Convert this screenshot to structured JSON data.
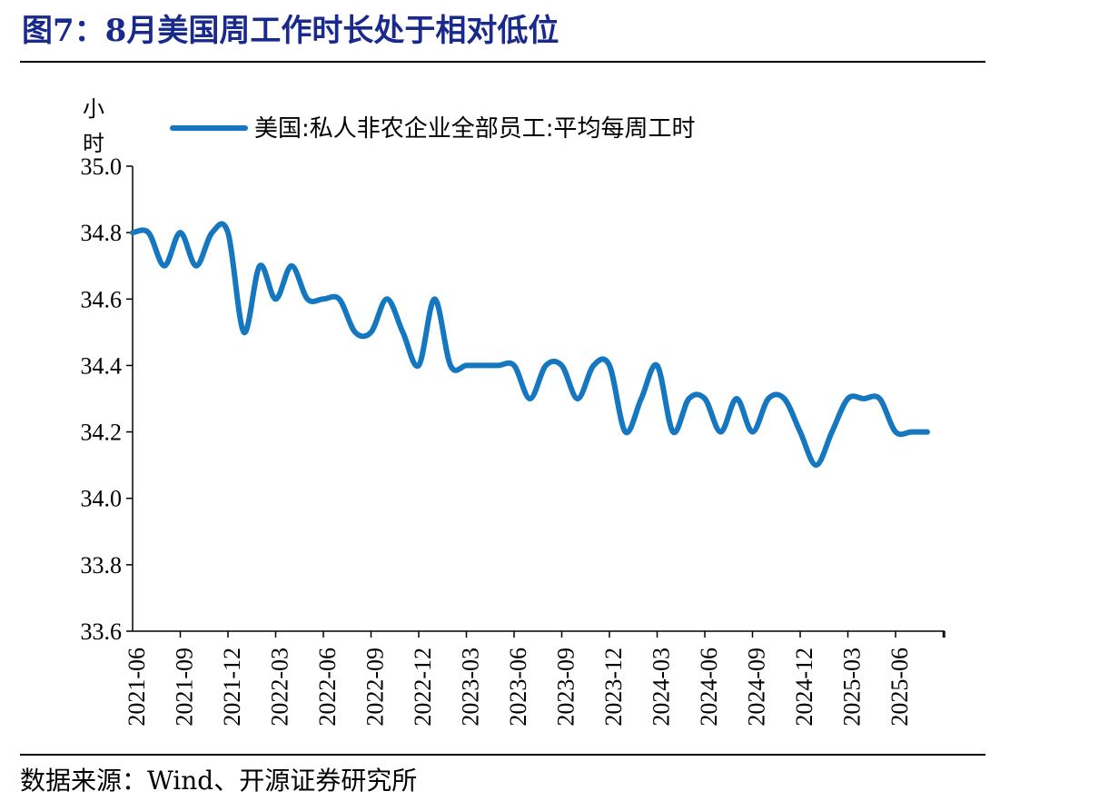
{
  "title": "图7：8月美国周工作时长处于相对低位",
  "source": "数据来源：Wind、开源证券研究所",
  "chart_data": {
    "type": "line",
    "ylabel": "小时",
    "ylim": [
      33.6,
      35.0
    ],
    "y_ticks": [
      "33.6",
      "33.8",
      "34.0",
      "34.2",
      "34.4",
      "34.6",
      "34.8",
      "35.0"
    ],
    "x_ticks": [
      "2021-06",
      "2021-09",
      "2021-12",
      "2022-03",
      "2022-06",
      "2022-09",
      "2022-12",
      "2023-03",
      "2023-06",
      "2023-09",
      "2023-12",
      "2024-03",
      "2024-06",
      "2024-09",
      "2024-12",
      "2025-03",
      "2025-06"
    ],
    "legend_position": "top",
    "color": "#1577c0",
    "series": [
      {
        "name": "美国:私人非农企业全部员工:平均每周工时",
        "x": [
          "2021-06",
          "2021-07",
          "2021-08",
          "2021-09",
          "2021-10",
          "2021-11",
          "2021-12",
          "2022-01",
          "2022-02",
          "2022-03",
          "2022-04",
          "2022-05",
          "2022-06",
          "2022-07",
          "2022-08",
          "2022-09",
          "2022-10",
          "2022-11",
          "2022-12",
          "2023-01",
          "2023-02",
          "2023-03",
          "2023-04",
          "2023-05",
          "2023-06",
          "2023-07",
          "2023-08",
          "2023-09",
          "2023-10",
          "2023-11",
          "2023-12",
          "2024-01",
          "2024-02",
          "2024-03",
          "2024-04",
          "2024-05",
          "2024-06",
          "2024-07",
          "2024-08",
          "2024-09",
          "2024-10",
          "2024-11",
          "2024-12",
          "2025-01",
          "2025-02",
          "2025-03",
          "2025-04",
          "2025-05",
          "2025-06",
          "2025-07",
          "2025-08"
        ],
        "values": [
          34.8,
          34.8,
          34.7,
          34.8,
          34.7,
          34.8,
          34.8,
          34.5,
          34.7,
          34.6,
          34.7,
          34.6,
          34.6,
          34.6,
          34.5,
          34.5,
          34.6,
          34.5,
          34.4,
          34.6,
          34.4,
          34.4,
          34.4,
          34.4,
          34.4,
          34.3,
          34.4,
          34.4,
          34.3,
          34.4,
          34.4,
          34.2,
          34.3,
          34.4,
          34.2,
          34.3,
          34.3,
          34.2,
          34.3,
          34.2,
          34.3,
          34.3,
          34.2,
          34.1,
          34.2,
          34.3,
          34.3,
          34.3,
          34.2,
          34.2,
          34.2
        ]
      }
    ]
  }
}
